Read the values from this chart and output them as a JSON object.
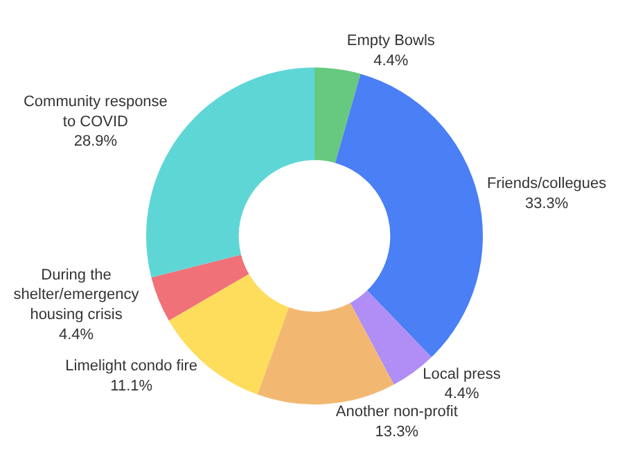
{
  "chart_data": {
    "type": "donut",
    "categories": [
      "Empty Bowls",
      "Friends/collegues",
      "Local press",
      "Another non-profit",
      "Limelight condo fire",
      "During the shelter/emergency housing crisis",
      "Community response to COVID"
    ],
    "values": [
      4.4,
      33.3,
      4.4,
      13.3,
      11.1,
      4.4,
      28.9
    ],
    "value_labels": [
      "4.4%",
      "33.3%",
      "4.4%",
      "13.3%",
      "11.1%",
      "4.4%",
      "28.9%"
    ],
    "colors": [
      "#66c97f",
      "#4a7ff5",
      "#b08ef5",
      "#f2b872",
      "#fedd5c",
      "#f07178",
      "#5fd6d6"
    ],
    "legend": false
  }
}
